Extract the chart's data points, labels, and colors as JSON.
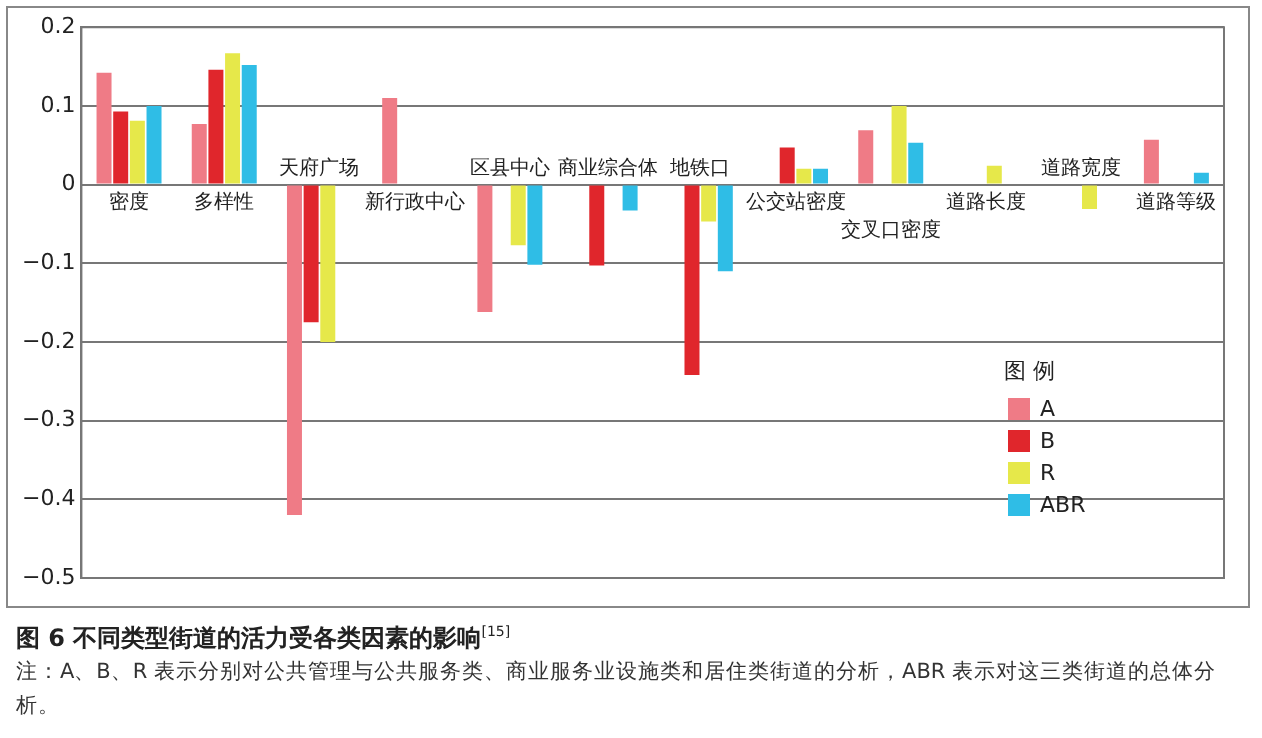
{
  "chart_data": {
    "type": "bar",
    "title": "图 6  不同类型街道的活力受各类因素的影响$^{[15]}$",
    "annotations": [
      "注：A、B、R 表示分别对公共管理与公共服务类、商业服务业设施类和居住类街道的分析，ABR 表示对这三类街道的总体分析。"
    ],
    "categories": [
      "密度",
      "多样性",
      "天府广场",
      "新行政中心",
      "区县中心",
      "商业综合体",
      "地铁口",
      "公交站密度",
      "交叉口密度",
      "道路长度",
      "道路宽度",
      "道路等级"
    ],
    "series": [
      {
        "name": "A",
        "color": "#ef7b86",
        "values": [
          0.142,
          0.077,
          -0.42,
          0.11,
          -0.162,
          null,
          null,
          null,
          0.069,
          null,
          null,
          0.057
        ]
      },
      {
        "name": "B",
        "color": "#e0262c",
        "values": [
          0.093,
          0.146,
          -0.175,
          null,
          null,
          -0.103,
          -0.242,
          0.047,
          null,
          null,
          null,
          null
        ]
      },
      {
        "name": "R",
        "color": "#e6e84a",
        "values": [
          0.081,
          0.167,
          -0.2,
          null,
          -0.077,
          null,
          -0.047,
          0.02,
          0.1,
          0.024,
          -0.031,
          null
        ]
      },
      {
        "name": "ABR",
        "color": "#2fbde6",
        "values": [
          0.1,
          0.152,
          null,
          null,
          -0.102,
          -0.033,
          -0.11,
          0.02,
          0.053,
          null,
          null,
          0.015
        ]
      }
    ],
    "legend_title": "图 例",
    "ylim": [
      -0.5,
      0.2
    ],
    "yticks": [
      0.2,
      0.1,
      0,
      {
        "value": -0.1,
        "label": "−0.1"
      },
      {
        "value": -0.2,
        "label": "−0.2"
      },
      {
        "value": -0.3,
        "label": "−0.3"
      },
      {
        "value": -0.4,
        "label": "−0.4"
      },
      {
        "value": -0.5,
        "label": "−0.5"
      }
    ],
    "grid": "y",
    "legend": "bottom right",
    "tick_labels": "y"
  }
}
